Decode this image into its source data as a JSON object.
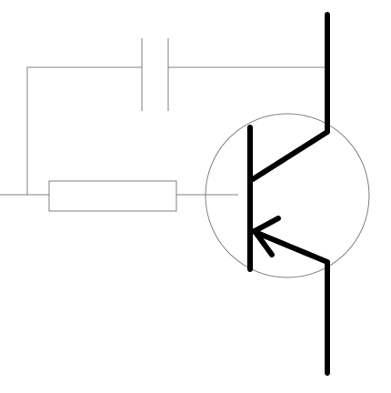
{
  "diagram": {
    "components": [
      "bjt-pnp-transistor",
      "resistor",
      "capacitor"
    ],
    "colors": {
      "stroke": "#000000",
      "wire": "#808080",
      "background": "#ffffff"
    }
  }
}
